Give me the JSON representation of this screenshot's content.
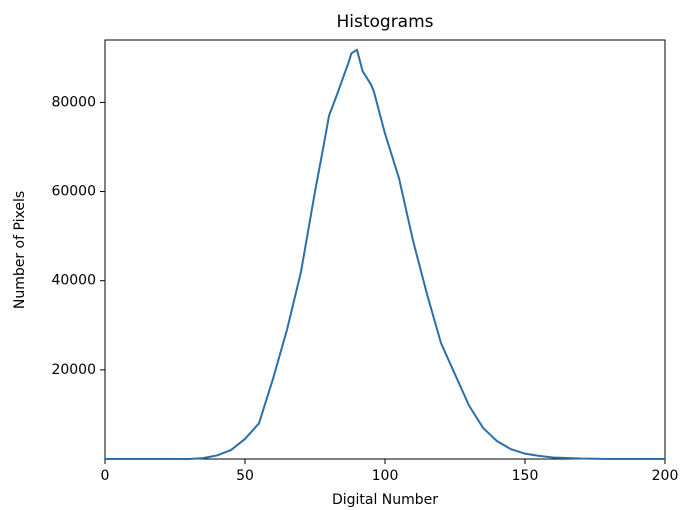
{
  "chart_data": {
    "type": "line",
    "title": "Histograms",
    "x_label": "Digital Number",
    "y_label": "Number of Pixels",
    "x": [
      0,
      10,
      20,
      30,
      35,
      40,
      45,
      50,
      55,
      60,
      65,
      70,
      75,
      78,
      80,
      83,
      85,
      87,
      88,
      90,
      92,
      95,
      96,
      100,
      105,
      110,
      115,
      120,
      125,
      130,
      135,
      140,
      145,
      150,
      155,
      160,
      170,
      180,
      190,
      200
    ],
    "values": [
      0,
      0,
      0,
      0,
      200,
      800,
      2000,
      4500,
      8000,
      18000,
      29000,
      42000,
      60000,
      70000,
      77000,
      82000,
      85500,
      89000,
      91000,
      91800,
      87000,
      84000,
      82500,
      73000,
      63000,
      49000,
      37000,
      26000,
      19000,
      12000,
      7000,
      4000,
      2200,
      1200,
      700,
      350,
      100,
      0,
      0,
      0
    ],
    "color": "#2a6fa8",
    "xlim": [
      0,
      200
    ],
    "xticks": [
      0,
      50,
      100,
      150,
      200
    ],
    "ylim": [
      0,
      94000
    ],
    "yticks": [
      20000,
      40000,
      60000,
      80000
    ]
  }
}
